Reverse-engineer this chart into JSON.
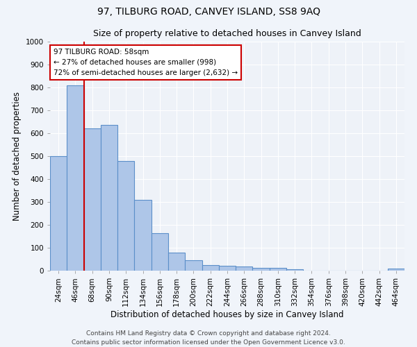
{
  "title": "97, TILBURG ROAD, CANVEY ISLAND, SS8 9AQ",
  "subtitle": "Size of property relative to detached houses in Canvey Island",
  "xlabel": "Distribution of detached houses by size in Canvey Island",
  "ylabel": "Number of detached properties",
  "footer_line1": "Contains HM Land Registry data © Crown copyright and database right 2024.",
  "footer_line2": "Contains public sector information licensed under the Open Government Licence v3.0.",
  "bar_labels": [
    "24sqm",
    "46sqm",
    "68sqm",
    "90sqm",
    "112sqm",
    "134sqm",
    "156sqm",
    "178sqm",
    "200sqm",
    "222sqm",
    "244sqm",
    "266sqm",
    "288sqm",
    "310sqm",
    "332sqm",
    "354sqm",
    "376sqm",
    "398sqm",
    "420sqm",
    "442sqm",
    "464sqm"
  ],
  "bar_values": [
    500,
    808,
    620,
    635,
    478,
    308,
    163,
    78,
    45,
    23,
    20,
    17,
    12,
    11,
    7,
    0,
    0,
    0,
    0,
    0,
    8
  ],
  "bar_color": "#aec6e8",
  "bar_edge_color": "#5b8fc9",
  "property_line_x": 1.5,
  "annotation_line1": "97 TILBURG ROAD: 58sqm",
  "annotation_line2": "← 27% of detached houses are smaller (998)",
  "annotation_line3": "72% of semi-detached houses are larger (2,632) →",
  "annotation_box_color": "#ffffff",
  "annotation_box_edge_color": "#cc0000",
  "line_color": "#cc0000",
  "ylim": [
    0,
    1000
  ],
  "yticks": [
    0,
    100,
    200,
    300,
    400,
    500,
    600,
    700,
    800,
    900,
    1000
  ],
  "background_color": "#f0f4fa",
  "axes_background_color": "#eef2f8",
  "grid_color": "#ffffff",
  "title_fontsize": 10,
  "subtitle_fontsize": 9,
  "xlabel_fontsize": 8.5,
  "ylabel_fontsize": 8.5,
  "tick_fontsize": 7.5,
  "footer_fontsize": 6.5,
  "annotation_fontsize": 7.5
}
